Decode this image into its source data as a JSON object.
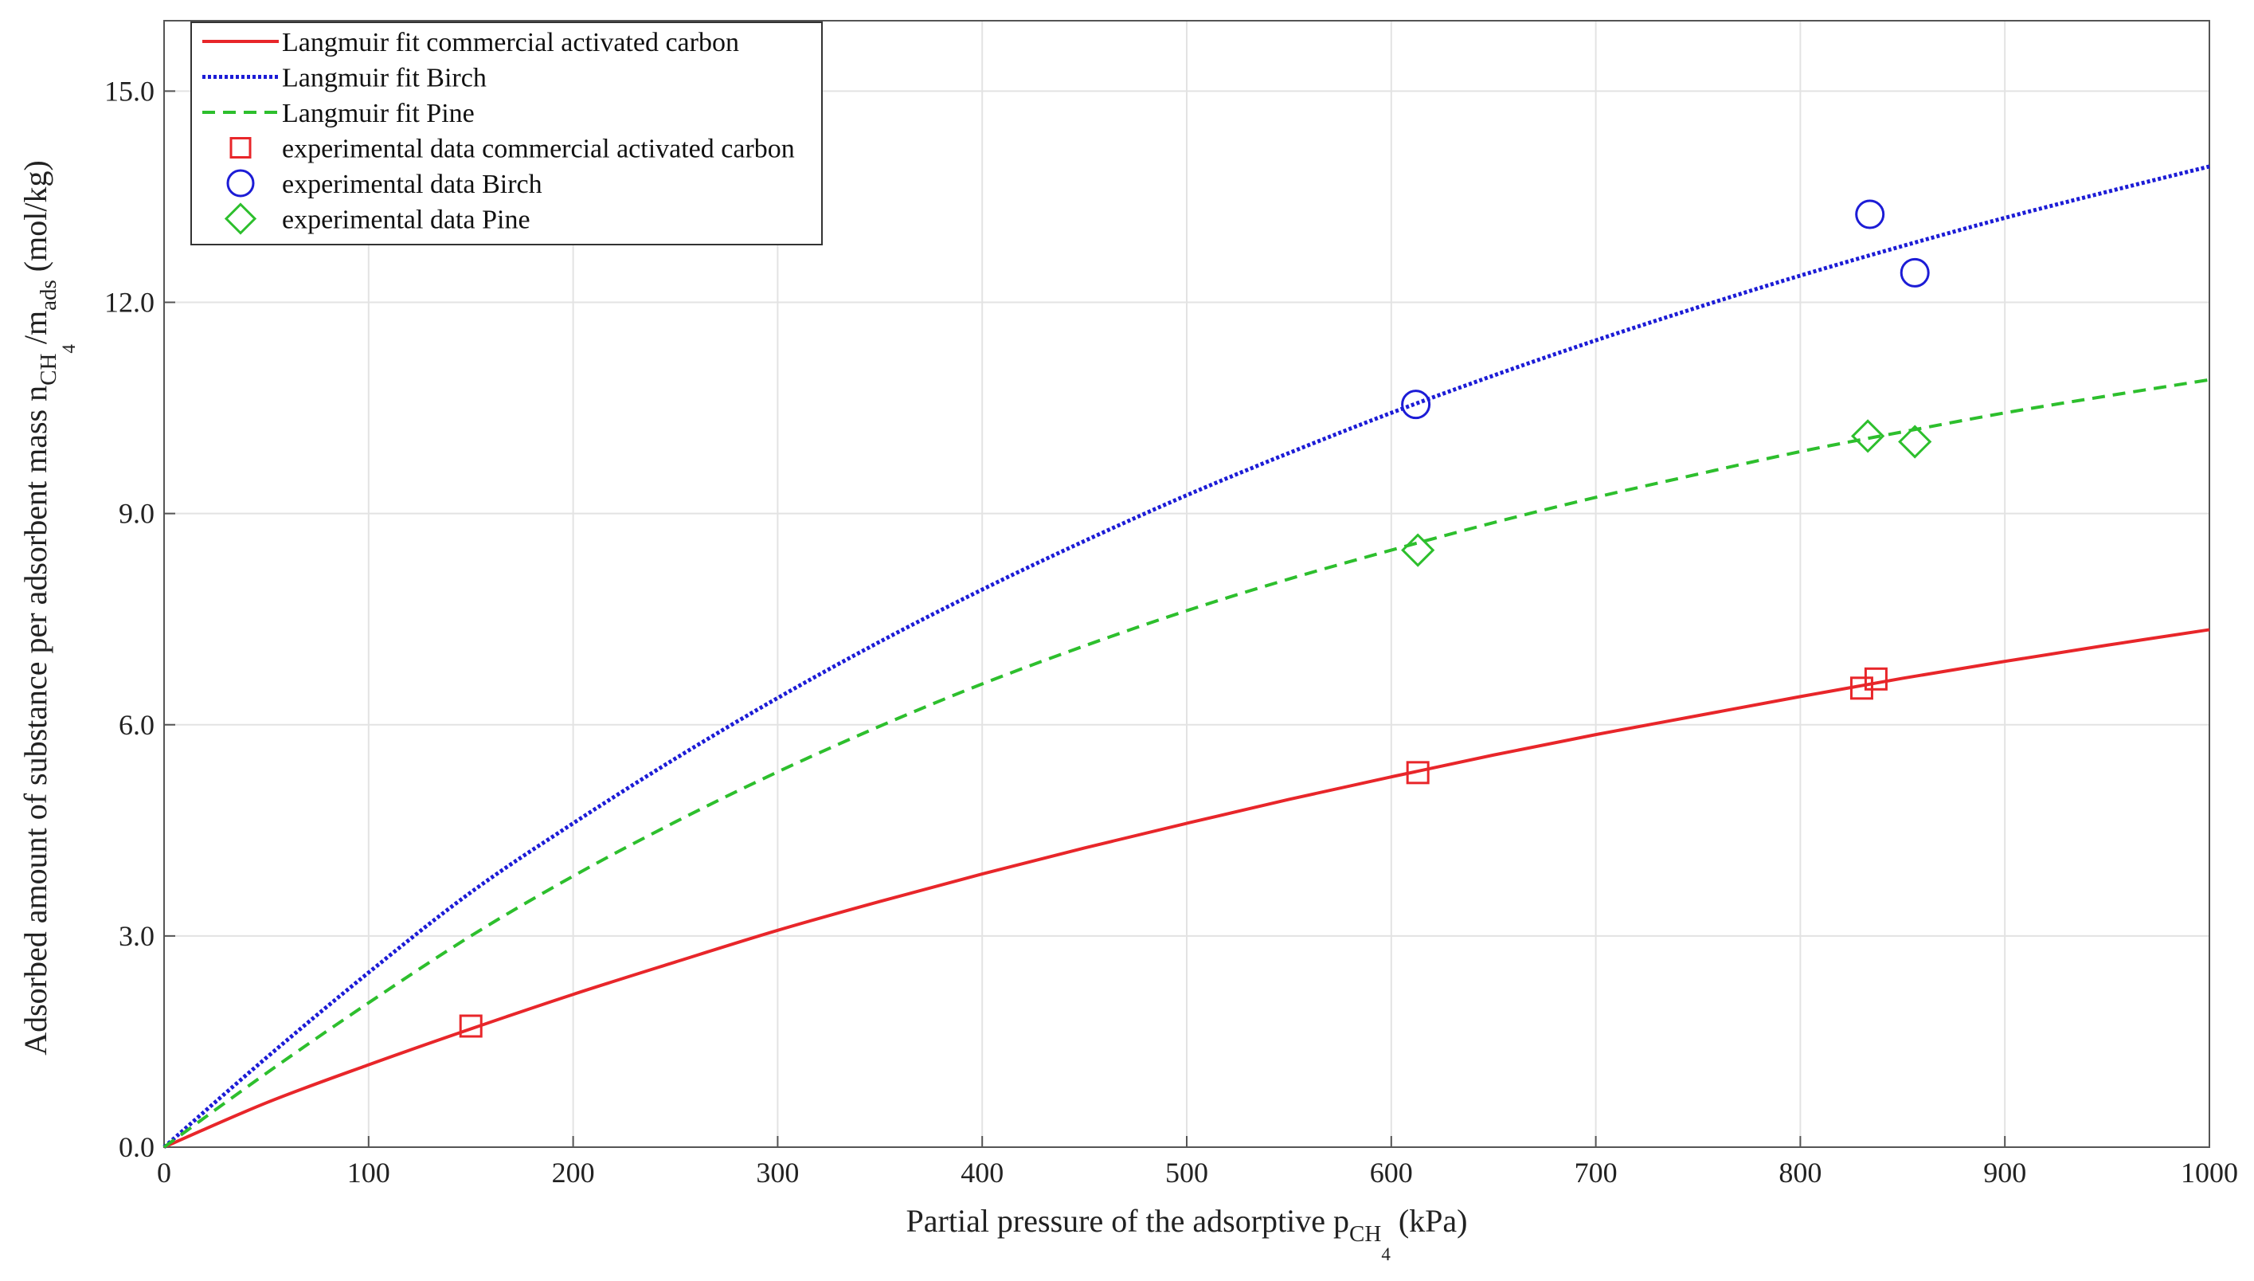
{
  "chart_data": {
    "type": "scatter",
    "xlabel": {
      "text": "Partial pressure of the adsorptive p",
      "sub": "CH",
      "subsub": "4",
      "suffix": " (kPa)"
    },
    "ylabel": {
      "text": "Adsorbed amount of substance per adsorbent mass n",
      "sub1": "CH",
      "subsub1": "4",
      "mid": "/m",
      "sub2": "ads",
      "suffix": " (mol/kg)"
    },
    "xlim": [
      0,
      1000
    ],
    "ylim": [
      0,
      16
    ],
    "x_ticks": [
      "0",
      "100",
      "200",
      "300",
      "400",
      "500",
      "600",
      "700",
      "800",
      "900",
      "1000"
    ],
    "y_ticks": [
      "0.0",
      "3.0",
      "6.0",
      "9.0",
      "12.0",
      "15.0"
    ],
    "grid": true,
    "legend_position": "top-left",
    "series": [
      {
        "name": "Langmuir fit commercial activated carbon",
        "kind": "line",
        "style": "solid",
        "color": "#e8262a",
        "x": [
          0,
          50,
          100,
          150,
          200,
          250,
          300,
          350,
          400,
          450,
          500,
          550,
          600,
          650,
          700,
          750,
          800,
          850,
          900,
          950,
          1000
        ],
        "y": [
          0,
          0.63,
          1.17,
          1.68,
          2.17,
          2.63,
          3.08,
          3.49,
          3.88,
          4.25,
          4.6,
          4.94,
          5.26,
          5.57,
          5.86,
          6.13,
          6.4,
          6.66,
          6.9,
          7.13,
          7.35
        ]
      },
      {
        "name": "Langmuir fit Birch",
        "kind": "line",
        "style": "dotted",
        "color": "#1c1cd6",
        "x": [
          0,
          50,
          100,
          150,
          200,
          250,
          300,
          350,
          400,
          450,
          500,
          550,
          600,
          650,
          700,
          750,
          800,
          850,
          900,
          950,
          1000
        ],
        "y": [
          0,
          1.27,
          2.48,
          3.62,
          4.6,
          5.52,
          6.38,
          7.18,
          7.92,
          8.61,
          9.26,
          9.86,
          10.43,
          10.96,
          11.46,
          11.93,
          12.38,
          12.8,
          13.2,
          13.57,
          13.93
        ]
      },
      {
        "name": "Langmuir fit Pine",
        "kind": "line",
        "style": "dashed",
        "color": "#2dbf2d",
        "x": [
          0,
          50,
          100,
          150,
          200,
          250,
          300,
          350,
          400,
          450,
          500,
          550,
          600,
          650,
          700,
          750,
          800,
          850,
          900,
          950,
          1000
        ],
        "y": [
          0,
          1.05,
          2.05,
          3.0,
          3.85,
          4.62,
          5.33,
          5.98,
          6.58,
          7.12,
          7.62,
          8.07,
          8.48,
          8.87,
          9.23,
          9.56,
          9.88,
          10.16,
          10.43,
          10.67,
          10.9
        ]
      },
      {
        "name": "experimental data commercial activated carbon",
        "kind": "points",
        "marker": "square",
        "color": "#e8262a",
        "x": [
          150,
          613,
          830,
          837
        ],
        "y": [
          1.72,
          5.32,
          6.52,
          6.65
        ]
      },
      {
        "name": "experimental data Birch",
        "kind": "points",
        "marker": "circle",
        "color": "#1c1cd6",
        "x": [
          612,
          834,
          856
        ],
        "y": [
          10.55,
          13.25,
          12.42
        ]
      },
      {
        "name": "experimental data Pine",
        "kind": "points",
        "marker": "diamond",
        "color": "#2dbf2d",
        "x": [
          613,
          833,
          856
        ],
        "y": [
          8.48,
          10.1,
          10.02
        ]
      }
    ]
  }
}
